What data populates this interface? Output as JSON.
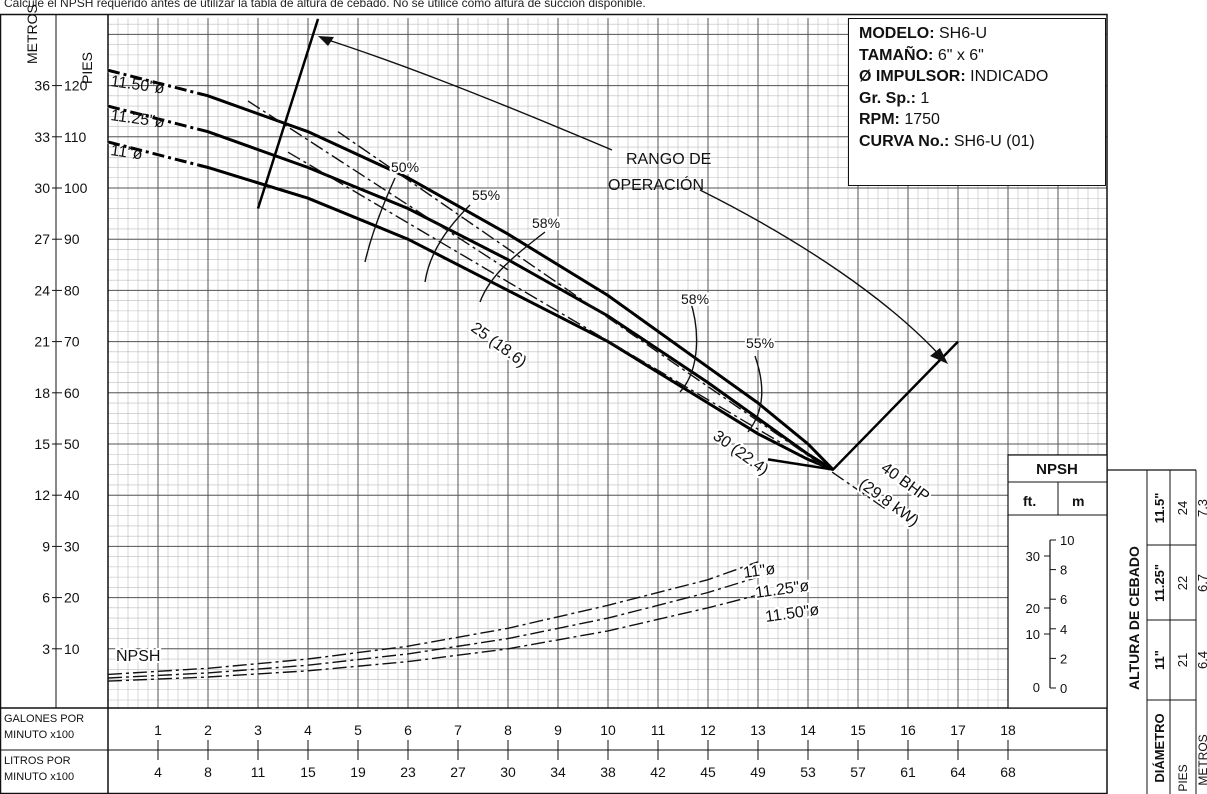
{
  "header_note": "Calcule el NPSH requerido antes de utilizar la tabla de altura de cebado. No se utilice como altura de succión disponible.",
  "info_box": {
    "modelo_label": "MODELO:",
    "modelo": "SH6-U",
    "tamano_label": "TAMAÑO:",
    "tamano": "6\" x 6\"",
    "impulsor_label": "Ø IMPULSOR:",
    "impulsor": "INDICADO",
    "grsp_label": "Gr. Sp.:",
    "grsp": "1",
    "rpm_label": "RPM:",
    "rpm": "1750",
    "curva_label": "CURVA No.:",
    "curva": "SH6-U (01)"
  },
  "chart_data": {
    "type": "line",
    "y_axis_metros_label": "METROS",
    "y_axis_pies_label": "PIES",
    "y_pies_ticks": [
      10,
      20,
      30,
      40,
      50,
      60,
      70,
      80,
      90,
      100,
      110,
      120
    ],
    "y_metros_ticks": [
      3,
      6,
      9,
      12,
      15,
      18,
      21,
      24,
      27,
      30,
      33,
      36
    ],
    "ylim_pies": [
      0,
      134
    ],
    "x_gpm_label": [
      "GALONES POR",
      "MINUTO x100"
    ],
    "x_lpm_label": [
      "LITROS POR",
      "MINUTO x100"
    ],
    "x_gpm_ticks": [
      1,
      2,
      3,
      4,
      5,
      6,
      7,
      8,
      9,
      10,
      11,
      12,
      13,
      14,
      15,
      16,
      17,
      18
    ],
    "x_lpm_ticks": [
      4,
      8,
      11,
      15,
      19,
      23,
      27,
      30,
      34,
      38,
      42,
      45,
      49,
      53,
      57,
      61,
      64,
      68
    ],
    "xlim_gpm": [
      0,
      18.6
    ],
    "grid": true,
    "head_curves": [
      {
        "name": "11.50\"ø",
        "x": [
          0,
          2,
          4,
          6,
          8,
          10,
          12,
          13,
          14,
          14.5
        ],
        "y": [
          123,
          118,
          111,
          102,
          91,
          79,
          65,
          58,
          50,
          45
        ]
      },
      {
        "name": "11.25\"ø",
        "x": [
          0,
          2,
          4,
          6,
          8,
          10,
          12,
          13,
          14,
          14.5
        ],
        "y": [
          116,
          111,
          104,
          96,
          86,
          75,
          62,
          55,
          48,
          45
        ]
      },
      {
        "name": "11\"ø",
        "x": [
          0,
          2,
          4,
          6,
          8,
          10,
          12,
          13,
          14,
          14.5
        ],
        "y": [
          109,
          104,
          98,
          90,
          80,
          70,
          58,
          52,
          47,
          45
        ]
      }
    ],
    "operating_range_label": [
      "RANGO DE",
      "OPERACIÓN"
    ],
    "operating_range_lines": [
      {
        "x": [
          3.0,
          4.2
        ],
        "y": [
          96,
          133
        ]
      },
      {
        "x": [
          13.2,
          14.5,
          17.0
        ],
        "y": [
          47,
          45,
          70
        ]
      }
    ],
    "efficiency_labels": [
      "50%",
      "55%",
      "58%",
      "58%",
      "55%"
    ],
    "power_lines": [
      {
        "label": "25 (18.6)",
        "x": [
          2.8,
          8.0
        ],
        "y": [
          117,
          84
        ]
      },
      {
        "label": "30 (22.4)",
        "x": [
          3.6,
          13.5
        ],
        "y": [
          107,
          50
        ]
      },
      {
        "label": "40 BHP (29.8 kW)",
        "x": [
          4.6,
          15.6
        ],
        "y": [
          111,
          37
        ]
      }
    ],
    "npsh_label": "NPSH",
    "npsh_curves": [
      {
        "name": "11\"ø",
        "x": [
          0,
          2,
          4,
          6,
          8,
          10,
          12,
          13
        ],
        "y": [
          5,
          6.2,
          8,
          10.5,
          14,
          18.5,
          23.5,
          27
        ]
      },
      {
        "name": "11.25\"ø",
        "x": [
          0,
          2,
          4,
          6,
          8,
          10,
          12,
          13
        ],
        "y": [
          4.3,
          5.3,
          6.8,
          9,
          12,
          16,
          21,
          24
        ]
      },
      {
        "name": "11.50\"ø",
        "x": [
          0,
          2,
          4,
          6,
          8,
          10,
          12,
          13
        ],
        "y": [
          3.7,
          4.5,
          5.7,
          7.5,
          10,
          13.5,
          18,
          20.5
        ]
      }
    ],
    "npsh_scale": {
      "title": "NPSH",
      "ft_label": "ft.",
      "m_label": "m",
      "ft_ticks": [
        10,
        20,
        30
      ],
      "m_ticks": [
        0,
        2,
        4,
        6,
        8,
        10
      ],
      "ft_zero": "0"
    },
    "priming_table": {
      "title": "ALTURA DE CEBADO",
      "diam_label": "DIÁMETRO",
      "pies_label": "PIES",
      "metros_label": "METROS",
      "rows": [
        {
          "diam": "11.5\"",
          "pies": "24",
          "metros": "7.3"
        },
        {
          "diam": "11.25\"",
          "pies": "22",
          "metros": "6.7"
        },
        {
          "diam": "11\"",
          "pies": "21",
          "metros": "6.4"
        }
      ]
    }
  }
}
